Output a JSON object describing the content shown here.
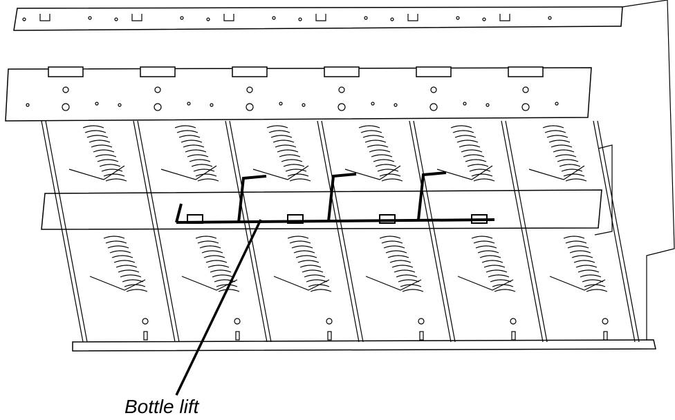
{
  "callout": {
    "label": "Bottle lift"
  }
}
